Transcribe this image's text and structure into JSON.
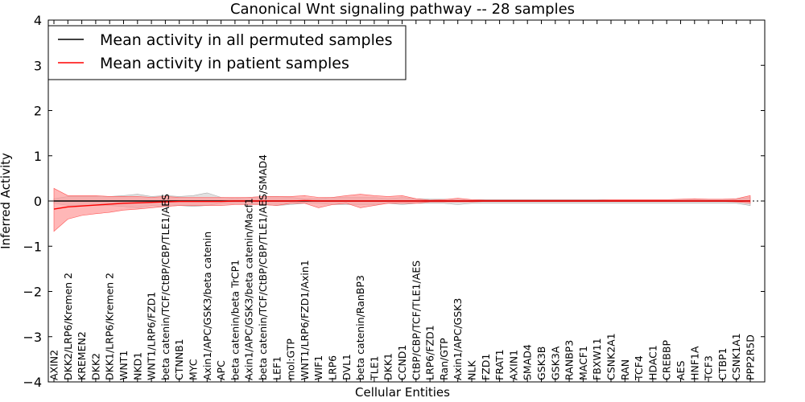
{
  "chart_data": {
    "type": "line",
    "title": "Canonical Wnt signaling pathway -- 28 samples",
    "xlabel": "Cellular Entities",
    "ylabel": "Inferred Activity",
    "ylim": [
      -4,
      4
    ],
    "yticks": [
      -4,
      -3,
      -2,
      -1,
      0,
      1,
      2,
      3,
      4
    ],
    "legend_position": "top-left",
    "categories": [
      "AXIN2",
      "DKK2/LRP6/Kremen 2",
      "KREMEN2",
      "DKK2",
      "DKK1/LRP6/Kremen 2",
      "WNT1",
      "NKD1",
      "WNT1/LRP6/FZD1",
      "beta catenin/TCF/CtBP/CBP/TLE1/AES",
      "CTNNB1",
      "MYC",
      "Axin1/APC/GSK3/beta catenin",
      "APC",
      "beta catenin/beta TrCP1",
      "Axin1/APC/GSK3/beta catenin/Macf1",
      "beta catenin/TCF/CtBP/CBP/TLE1/AES/SMAD4",
      "LEF1",
      "mol:GTP",
      "WNT1/LRP6/FZD1/Axin1",
      "WIF1",
      "LRP6",
      "DVL1",
      "beta catenin/RanBP3",
      "TLE1",
      "DKK1",
      "CCND1",
      "CtBP/CBP/TCF/TLE1/AES",
      "LRP6/FZD1",
      "Ran/GTP",
      "Axin1/APC/GSK3",
      "NLK",
      "FZD1",
      "FRAT1",
      "AXIN1",
      "SMAD4",
      "GSK3B",
      "GSK3A",
      "RANBP3",
      "MACF1",
      "FBXW11",
      "CSNK2A1",
      "RAN",
      "TCF4",
      "HDAC1",
      "CREBBP",
      "AES",
      "HNF1A",
      "TCF3",
      "CTBP1",
      "CSNK1A1",
      "PPP2R5D"
    ],
    "series": [
      {
        "name": "Mean activity in all permuted samples",
        "color": "#000000",
        "band_color": "#c8c8c8",
        "values": [
          0,
          0,
          0,
          0,
          0,
          0,
          0,
          0,
          0,
          0,
          0,
          0,
          0,
          0,
          0,
          0,
          0,
          0,
          0,
          0,
          0,
          0,
          0,
          0,
          0,
          0,
          0,
          0,
          0,
          0,
          0,
          0,
          0,
          0,
          0,
          0,
          0,
          0,
          0,
          0,
          0,
          0,
          0,
          0,
          0,
          0,
          0,
          0,
          0,
          0,
          0
        ],
        "lower": [
          -0.05,
          -0.1,
          -0.1,
          -0.1,
          -0.1,
          -0.12,
          -0.15,
          -0.1,
          -0.12,
          -0.1,
          -0.12,
          -0.1,
          -0.05,
          -0.05,
          -0.05,
          -0.08,
          -0.1,
          -0.08,
          -0.05,
          -0.05,
          -0.08,
          -0.08,
          -0.08,
          -0.08,
          -0.05,
          -0.08,
          -0.05,
          -0.05,
          -0.05,
          -0.08,
          -0.05,
          -0.05,
          -0.05,
          -0.05,
          -0.05,
          -0.05,
          -0.05,
          -0.05,
          -0.05,
          -0.05,
          -0.05,
          -0.05,
          -0.05,
          -0.05,
          -0.05,
          -0.05,
          -0.05,
          -0.05,
          -0.05,
          -0.05,
          -0.1
        ],
        "upper": [
          0.05,
          0.1,
          0.1,
          0.1,
          0.1,
          0.12,
          0.15,
          0.1,
          0.12,
          0.1,
          0.12,
          0.18,
          0.08,
          0.06,
          0.08,
          0.1,
          0.1,
          0.08,
          0.05,
          0.05,
          0.08,
          0.08,
          0.08,
          0.08,
          0.05,
          0.08,
          0.05,
          0.04,
          0.04,
          0.03,
          0.03,
          0.03,
          0.03,
          0.03,
          0.03,
          0.03,
          0.03,
          0.03,
          0.03,
          0.03,
          0.03,
          0.03,
          0.03,
          0.03,
          0.03,
          0.03,
          0.03,
          0.03,
          0.03,
          0.04,
          0.08
        ]
      },
      {
        "name": "Mean activity in patient samples",
        "color": "#ff0000",
        "band_color": "#ff9999",
        "values": [
          -0.18,
          -0.13,
          -0.11,
          -0.09,
          -0.07,
          -0.05,
          -0.04,
          -0.03,
          -0.02,
          -0.01,
          -0.01,
          -0.01,
          -0.01,
          0,
          0,
          0,
          0,
          0,
          0.01,
          0,
          0,
          0,
          0,
          0,
          0,
          0,
          0,
          0,
          0,
          0,
          0,
          0,
          0,
          0,
          0,
          0,
          0,
          0,
          0,
          0,
          0,
          0,
          0,
          0,
          0,
          0,
          0,
          0,
          0,
          0,
          0
        ],
        "lower": [
          -0.67,
          -0.4,
          -0.32,
          -0.28,
          -0.25,
          -0.2,
          -0.18,
          -0.15,
          -0.12,
          -0.1,
          -0.1,
          -0.1,
          -0.1,
          -0.08,
          -0.08,
          -0.08,
          -0.1,
          -0.05,
          -0.05,
          -0.15,
          -0.08,
          -0.05,
          -0.15,
          -0.1,
          -0.05,
          -0.05,
          -0.05,
          -0.02,
          -0.02,
          -0.02,
          -0.02,
          -0.01,
          -0.01,
          -0.01,
          -0.01,
          -0.01,
          -0.01,
          -0.01,
          -0.01,
          -0.01,
          -0.01,
          -0.01,
          -0.01,
          -0.01,
          -0.01,
          -0.01,
          -0.01,
          -0.01,
          -0.01,
          -0.02,
          -0.05
        ],
        "upper": [
          0.28,
          0.12,
          0.12,
          0.12,
          0.1,
          0.1,
          0.1,
          0.08,
          0.1,
          0.08,
          0.08,
          0.08,
          0.08,
          0.08,
          0.08,
          0.1,
          0.1,
          0.1,
          0.12,
          0.08,
          0.08,
          0.12,
          0.15,
          0.12,
          0.1,
          0.12,
          0.05,
          0.02,
          0.03,
          0.06,
          0.03,
          0.02,
          0.02,
          0.02,
          0.02,
          0.02,
          0.02,
          0.02,
          0.02,
          0.02,
          0.03,
          0.03,
          0.03,
          0.03,
          0.03,
          0.04,
          0.05,
          0.04,
          0.04,
          0.05,
          0.12
        ]
      }
    ]
  }
}
